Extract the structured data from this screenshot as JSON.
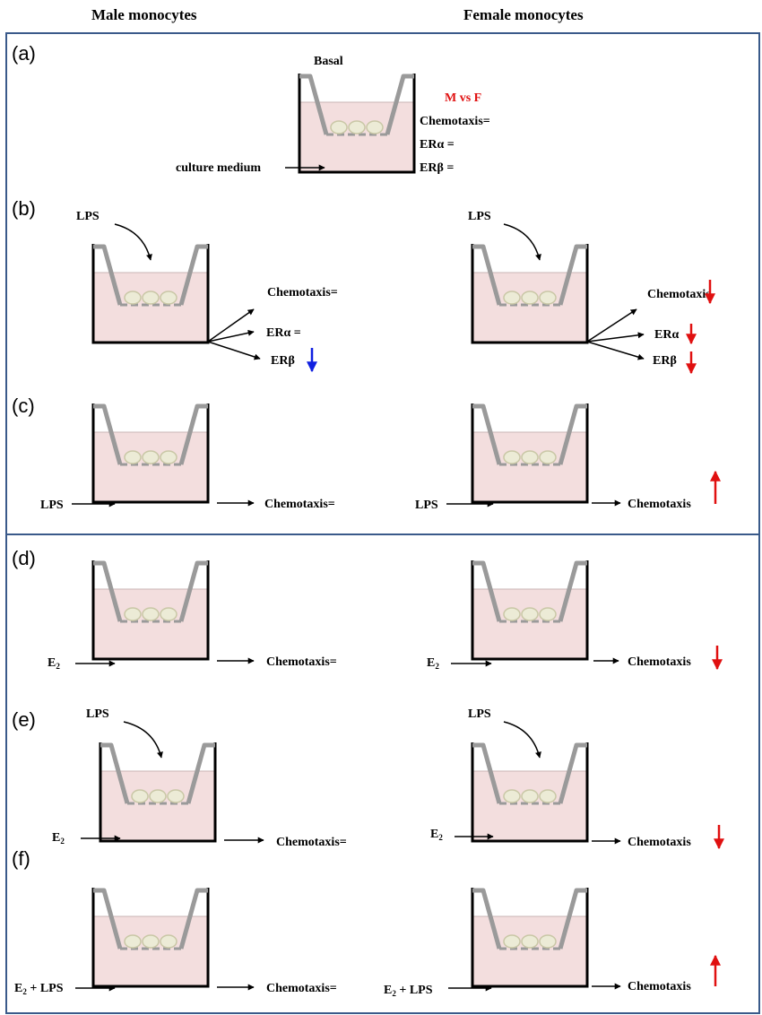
{
  "header": {
    "left": "Male monocytes",
    "right": "Female monocytes"
  },
  "panels": {
    "a": "(a)",
    "b": "(b)",
    "c": "(c)",
    "d": "(d)",
    "e": "(e)",
    "f": "(f)"
  },
  "basal": {
    "title": "Basal",
    "compare": "M vs F",
    "chemotaxis": "Chemotaxis=",
    "era": "ERα =",
    "erb": "ERβ =",
    "medium": "culture medium"
  },
  "labels": {
    "lps": "LPS",
    "e2": "E",
    "e2_sub": "2",
    "e2lps_suffix": " + LPS",
    "chemotaxis_eq": "Chemotaxis=",
    "era_eq": "ERα =",
    "chemotaxis": "Chemotaxis",
    "era": "ERα",
    "erb": "ERβ"
  },
  "colors": {
    "medium": "#f3dede",
    "insert": "#9a9a9a",
    "cells": "#ecebd6",
    "red_arrow": "#e01010",
    "blue_arrow": "#1020e0",
    "frame": "#3a5a8a"
  },
  "icons": {
    "up_red": "arrow-up-icon",
    "down_red": "arrow-down-icon",
    "down_blue": "arrow-down-icon"
  }
}
